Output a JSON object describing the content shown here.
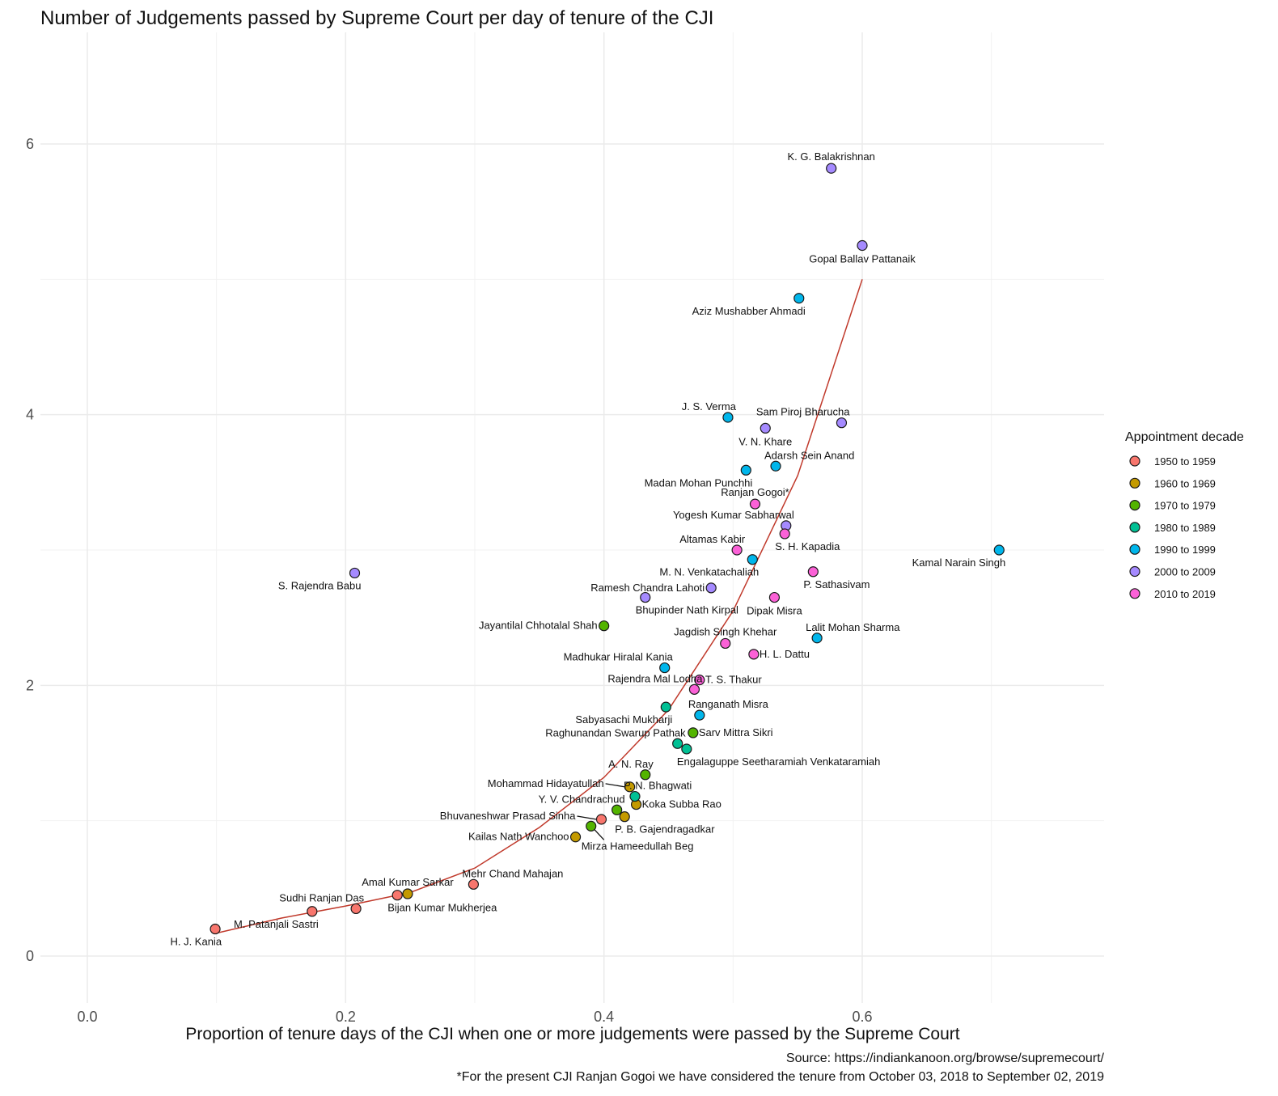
{
  "chart_data": {
    "type": "scatter",
    "title": "Number of Judgements passed by Supreme Court per day of tenure of the CJI",
    "xlabel": "Proportion of tenure days of the CJI when one or more judgements were passed by the Supreme Court",
    "ylabel": "",
    "xlim": [
      -0.03,
      0.79
    ],
    "ylim": [
      -0.3,
      6.5
    ],
    "x_ticks": [
      0.0,
      0.2,
      0.4,
      0.6
    ],
    "x_tick_labels": [
      "0.0",
      "0.2",
      "0.4",
      "0.6"
    ],
    "y_ticks": [
      0,
      2,
      4,
      6
    ],
    "y_tick_labels": [
      "0",
      "2",
      "4",
      "6"
    ],
    "grid": true,
    "legend": {
      "title": "Appointment decade",
      "placement": "right",
      "entries": [
        {
          "label": "1950 to 1959",
          "color": "#F8766D"
        },
        {
          "label": "1960 to 1969",
          "color": "#C49A00"
        },
        {
          "label": "1970 to 1979",
          "color": "#53B400"
        },
        {
          "label": "1980 to 1989",
          "color": "#00C094"
        },
        {
          "label": "1990 to 1999",
          "color": "#00B6EB"
        },
        {
          "label": "2000 to 2009",
          "color": "#A58AFF"
        },
        {
          "label": "2010 to 2019",
          "color": "#FB61D7"
        }
      ]
    },
    "trend_line": {
      "color": "#C0392B",
      "x": [
        0.1,
        0.15,
        0.2,
        0.25,
        0.3,
        0.35,
        0.4,
        0.45,
        0.5,
        0.55,
        0.6
      ],
      "y": [
        0.17,
        0.28,
        0.37,
        0.47,
        0.65,
        0.95,
        1.32,
        1.82,
        2.55,
        3.55,
        5.0
      ]
    },
    "points": [
      {
        "name": "H. J. Kania",
        "x": 0.099,
        "y": 0.2,
        "decade": "1950 to 1959",
        "label_pos": "below-left"
      },
      {
        "name": "M. Patanjali Sastri",
        "x": 0.174,
        "y": 0.33,
        "decade": "1950 to 1959",
        "label_pos": "below-left"
      },
      {
        "name": "Sudhi Ranjan Das",
        "x": 0.208,
        "y": 0.35,
        "decade": "1950 to 1959",
        "label_pos": "above-left"
      },
      {
        "name": "Bijan Kumar Mukherjea",
        "x": 0.24,
        "y": 0.45,
        "decade": "1950 to 1959",
        "label_pos": "below-right"
      },
      {
        "name": "Amal Kumar Sarkar",
        "x": 0.248,
        "y": 0.46,
        "decade": "1960 to 1969",
        "label_pos": "above"
      },
      {
        "name": "Mehr Chand Mahajan",
        "x": 0.299,
        "y": 0.53,
        "decade": "1950 to 1959",
        "label_pos": "above-right"
      },
      {
        "name": "Bhuvaneshwar Prasad Sinha",
        "x": 0.398,
        "y": 1.01,
        "decade": "1950 to 1959",
        "label_pos": "left-leader"
      },
      {
        "name": "Kailas Nath Wanchoo",
        "x": 0.378,
        "y": 0.88,
        "decade": "1960 to 1969",
        "label_pos": "left"
      },
      {
        "name": "P. B. Gajendragadkar",
        "x": 0.416,
        "y": 1.03,
        "decade": "1960 to 1969",
        "label_pos": "below-right"
      },
      {
        "name": "Koka Subba Rao",
        "x": 0.425,
        "y": 1.12,
        "decade": "1960 to 1969",
        "label_pos": "right"
      },
      {
        "name": "Mohammad Hidayatullah",
        "x": 0.42,
        "y": 1.25,
        "decade": "1960 to 1969",
        "label_pos": "left-leader"
      },
      {
        "name": "Mirza Hameedullah Beg",
        "x": 0.39,
        "y": 0.96,
        "decade": "1970 to 1979",
        "label_pos": "below-right-leader"
      },
      {
        "name": "Y. V. Chandrachud",
        "x": 0.41,
        "y": 1.08,
        "decade": "1970 to 1979",
        "label_pos": "above-left"
      },
      {
        "name": "A. N. Ray",
        "x": 0.432,
        "y": 1.34,
        "decade": "1970 to 1979",
        "label_pos": "above-left"
      },
      {
        "name": "Sarv Mittra Sikri",
        "x": 0.469,
        "y": 1.65,
        "decade": "1970 to 1979",
        "label_pos": "right"
      },
      {
        "name": "Jayantilal Chhotalal Shah",
        "x": 0.4,
        "y": 2.44,
        "decade": "1970 to 1979",
        "label_pos": "left"
      },
      {
        "name": "P. N. Bhagwati",
        "x": 0.424,
        "y": 1.18,
        "decade": "1980 to 1989",
        "label_pos": "above-right"
      },
      {
        "name": "Engalaguppe Seetharamiah Venkataramiah",
        "x": 0.464,
        "y": 1.53,
        "decade": "1980 to 1989",
        "label_pos": "below-right"
      },
      {
        "name": "Raghunandan Swarup Pathak",
        "x": 0.457,
        "y": 1.57,
        "decade": "1980 to 1989",
        "label_pos": "above-left"
      },
      {
        "name": "Sabyasachi Mukharji",
        "x": 0.448,
        "y": 1.84,
        "decade": "1980 to 1989",
        "label_pos": "below-left"
      },
      {
        "name": "Ranganath Misra",
        "x": 0.474,
        "y": 1.78,
        "decade": "1990 to 1999",
        "label_pos": "above-right"
      },
      {
        "name": "Madhukar Hiralal Kania",
        "x": 0.447,
        "y": 2.13,
        "decade": "1990 to 1999",
        "label_pos": "above-left"
      },
      {
        "name": "Lalit Mohan Sharma",
        "x": 0.565,
        "y": 2.35,
        "decade": "1990 to 1999",
        "label_pos": "above-right"
      },
      {
        "name": "M. N. Venkatachaliah",
        "x": 0.515,
        "y": 2.93,
        "decade": "1990 to 1999",
        "label_pos": "below-left"
      },
      {
        "name": "Kamal Narain Singh",
        "x": 0.706,
        "y": 3.0,
        "decade": "1990 to 1999",
        "label_pos": "below-left"
      },
      {
        "name": "Madan Mohan Punchhi",
        "x": 0.51,
        "y": 3.59,
        "decade": "1990 to 1999",
        "label_pos": "below-left"
      },
      {
        "name": "Adarsh Sein Anand",
        "x": 0.533,
        "y": 3.62,
        "decade": "1990 to 1999",
        "label_pos": "above-right"
      },
      {
        "name": "J. S. Verma",
        "x": 0.496,
        "y": 3.98,
        "decade": "1990 to 1999",
        "label_pos": "above-left"
      },
      {
        "name": "Aziz Mushabber Ahmadi",
        "x": 0.551,
        "y": 4.86,
        "decade": "1990 to 1999",
        "label_pos": "below-left"
      },
      {
        "name": "S. Rajendra Babu",
        "x": 0.207,
        "y": 2.83,
        "decade": "2000 to 2009",
        "label_pos": "below-left"
      },
      {
        "name": "Bhupinder Nath Kirpal",
        "x": 0.432,
        "y": 2.65,
        "decade": "2000 to 2009",
        "label_pos": "below-right"
      },
      {
        "name": "Ramesh Chandra Lahoti",
        "x": 0.483,
        "y": 2.72,
        "decade": "2000 to 2009",
        "label_pos": "left"
      },
      {
        "name": "Yogesh Kumar Sabharwal",
        "x": 0.541,
        "y": 3.18,
        "decade": "2000 to 2009",
        "label_pos": "above-left"
      },
      {
        "name": "V. N. Khare",
        "x": 0.525,
        "y": 3.9,
        "decade": "2000 to 2009",
        "label_pos": "below"
      },
      {
        "name": "Sam Piroj Bharucha",
        "x": 0.584,
        "y": 3.94,
        "decade": "2000 to 2009",
        "label_pos": "above-left"
      },
      {
        "name": "Gopal Ballav Pattanaik",
        "x": 0.6,
        "y": 5.25,
        "decade": "2000 to 2009",
        "label_pos": "below"
      },
      {
        "name": "K. G. Balakrishnan",
        "x": 0.576,
        "y": 5.82,
        "decade": "2000 to 2009",
        "label_pos": "above"
      },
      {
        "name": "Rajendra Mal Lodha",
        "x": 0.47,
        "y": 1.97,
        "decade": "2010 to 2019",
        "label_pos": "above-left"
      },
      {
        "name": "T. S. Thakur",
        "x": 0.474,
        "y": 2.04,
        "decade": "2010 to 2019",
        "label_pos": "right"
      },
      {
        "name": "H. L. Dattu",
        "x": 0.516,
        "y": 2.23,
        "decade": "2010 to 2019",
        "label_pos": "right"
      },
      {
        "name": "Jagdish Singh Khehar",
        "x": 0.494,
        "y": 2.31,
        "decade": "2010 to 2019",
        "label_pos": "above"
      },
      {
        "name": "Dipak Misra",
        "x": 0.532,
        "y": 2.65,
        "decade": "2010 to 2019",
        "label_pos": "below"
      },
      {
        "name": "P. Sathasivam",
        "x": 0.562,
        "y": 2.84,
        "decade": "2010 to 2019",
        "label_pos": "below-right"
      },
      {
        "name": "Altamas Kabir",
        "x": 0.503,
        "y": 3.0,
        "decade": "2010 to 2019",
        "label_pos": "above-left"
      },
      {
        "name": "S. H. Kapadia",
        "x": 0.54,
        "y": 3.12,
        "decade": "2010 to 2019",
        "label_pos": "below-right"
      },
      {
        "name": "Ranjan Gogoi*",
        "x": 0.517,
        "y": 3.34,
        "decade": "2010 to 2019",
        "label_pos": "above"
      }
    ],
    "caption_lines": [
      "Source: https://indiankanoon.org/browse/supremecourt/",
      "*For the present CJI Ranjan Gogoi we have considered the tenure from October 03, 2018 to September 02, 2019"
    ]
  }
}
